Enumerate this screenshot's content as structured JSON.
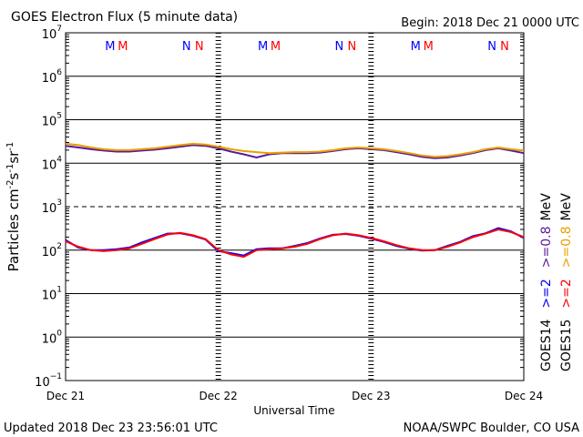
{
  "chart_data": {
    "type": "line",
    "title": "GOES Electron Flux (5 minute data)",
    "subtitle": "Begin: 2018 Dec 21 0000 UTC",
    "x_label": "Universal Time",
    "y_label_parts": [
      "Particles cm",
      "-2",
      "s",
      "-1",
      "sr",
      "-1"
    ],
    "footer_left": "Updated 2018 Dec 23 23:56:01 UTC",
    "footer_right": "NOAA/SWPC Boulder, CO USA",
    "unit": "MeV",
    "log_y": true,
    "grid": true,
    "threshold": 1000,
    "xlim": [
      0,
      72
    ],
    "xticks": [
      {
        "value": 0,
        "label": "Dec 21"
      },
      {
        "value": 24,
        "label": "Dec 22"
      },
      {
        "value": 48,
        "label": "Dec 23"
      },
      {
        "value": 72,
        "label": "Dec 24"
      }
    ],
    "ylim": [
      0.1,
      10000000
    ],
    "yticks": [
      {
        "value": 10000000,
        "label": "10",
        "exponent": "7"
      },
      {
        "value": 1000000,
        "label": "10",
        "exponent": "6"
      },
      {
        "value": 100000,
        "label": "10",
        "exponent": "5"
      },
      {
        "value": 10000,
        "label": "10",
        "exponent": "4"
      },
      {
        "value": 1000,
        "label": "10",
        "exponent": "3"
      },
      {
        "value": 100,
        "label": "10",
        "exponent": "2"
      },
      {
        "value": 10,
        "label": "10",
        "exponent": "1"
      },
      {
        "value": 1,
        "label": "10",
        "exponent": "0"
      },
      {
        "value": 0.1,
        "label": "10",
        "exponent": "−1"
      }
    ],
    "markers": [
      {
        "label": "M",
        "x": 7,
        "color": "#0000ff"
      },
      {
        "label": "M",
        "x": 9,
        "color": "#ff0000"
      },
      {
        "label": "N",
        "x": 19,
        "color": "#0000ff"
      },
      {
        "label": "N",
        "x": 21,
        "color": "#ff0000"
      },
      {
        "label": "M",
        "x": 31,
        "color": "#0000ff"
      },
      {
        "label": "M",
        "x": 33,
        "color": "#ff0000"
      },
      {
        "label": "N",
        "x": 43,
        "color": "#0000ff"
      },
      {
        "label": "N",
        "x": 45,
        "color": "#ff0000"
      },
      {
        "label": "M",
        "x": 55,
        "color": "#0000ff"
      },
      {
        "label": "M",
        "x": 57,
        "color": "#ff0000"
      },
      {
        "label": "N",
        "x": 67,
        "color": "#0000ff"
      },
      {
        "label": "N",
        "x": 69,
        "color": "#ff0000"
      }
    ],
    "x": [
      0,
      2,
      4,
      6,
      8,
      10,
      12,
      14,
      16,
      18,
      20,
      22,
      24,
      26,
      28,
      30,
      32,
      34,
      36,
      38,
      40,
      42,
      44,
      46,
      48,
      50,
      52,
      54,
      56,
      58,
      60,
      62,
      64,
      66,
      68,
      70,
      72
    ],
    "groups": [
      {
        "name": "GOES14",
        "series": [
          {
            "name": ">=2",
            "color": "#0000ff",
            "values": [
              170,
              115,
              100,
              100,
              105,
              115,
              150,
              190,
              240,
              245,
              215,
              175,
              95,
              85,
              75,
              105,
              110,
              110,
              125,
              145,
              185,
              225,
              235,
              215,
              185,
              155,
              125,
              108,
              98,
              100,
              125,
              155,
              210,
              245,
              320,
              270,
              190
            ]
          },
          {
            "name": ">=0.8",
            "color": "#5a1a9a",
            "values": [
              25000,
              23000,
              21000,
              19500,
              18500,
              18500,
              19500,
              20500,
              22000,
              24000,
              26000,
              25000,
              22000,
              18500,
              16000,
              13500,
              16000,
              17000,
              17000,
              17000,
              17500,
              19000,
              21000,
              22000,
              21000,
              20000,
              18000,
              16000,
              14000,
              13000,
              13500,
              15000,
              17000,
              20000,
              22000,
              19500,
              17000
            ]
          }
        ]
      },
      {
        "name": "GOES15",
        "series": [
          {
            "name": ">=2",
            "color": "#ff0000",
            "values": [
              160,
              120,
              100,
              95,
              100,
              110,
              140,
              180,
              230,
              250,
              220,
              180,
              100,
              80,
              70,
              100,
              105,
              110,
              120,
              140,
              180,
              220,
              240,
              220,
              190,
              160,
              130,
              110,
              100,
              100,
              120,
              150,
              200,
              240,
              300,
              260,
              200
            ]
          },
          {
            "name": ">=0.8",
            "color": "#e8a000",
            "values": [
              28000,
              26000,
              23000,
              21000,
              20000,
              20000,
              21000,
              22000,
              24000,
              26000,
              28000,
              27000,
              24000,
              21000,
              19000,
              18000,
              17000,
              17500,
              18000,
              18000,
              18500,
              20000,
              22000,
              23000,
              22000,
              21000,
              19000,
              17000,
              15000,
              14000,
              14500,
              16000,
              18000,
              21000,
              23000,
              21000,
              19500
            ]
          }
        ]
      }
    ]
  }
}
